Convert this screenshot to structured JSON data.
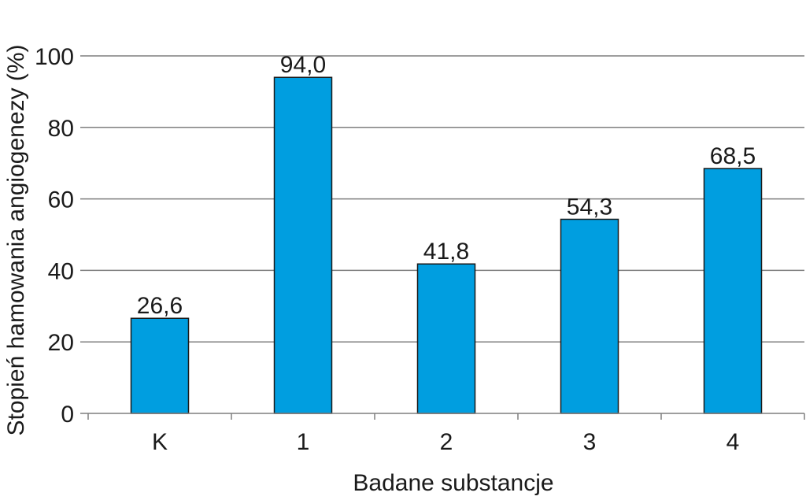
{
  "chart_data": {
    "type": "bar",
    "categories": [
      "K",
      "1",
      "2",
      "3",
      "4"
    ],
    "values": [
      26.6,
      94.0,
      41.8,
      54.3,
      68.5
    ],
    "data_labels": [
      "26,6",
      "94,0",
      "41,8",
      "54,3",
      "68,5"
    ],
    "title": "",
    "xlabel": "Badane substancje",
    "ylabel": "Stopień hamowania angiogenezy (%)",
    "ylim": [
      0,
      100
    ],
    "yticks": [
      0,
      20,
      40,
      60,
      80,
      100
    ],
    "ytick_labels": [
      "0",
      "20",
      "40",
      "60",
      "80",
      "100"
    ],
    "grid": true,
    "legend": "none",
    "colors": {
      "bar_fill": "#009ee0",
      "bar_stroke": "#1a1a1a",
      "grid": "#7f7f7f",
      "axis": "#7f7f7f"
    }
  }
}
